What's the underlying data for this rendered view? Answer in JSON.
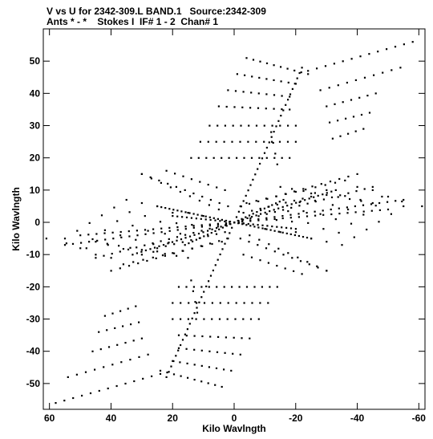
{
  "header": {
    "title_line1": "V vs U for 2342-309.L BAND.1   Source:2342-309",
    "title_line2": "Ants * - *    Stokes I  IF# 1 - 2  Chan# 1"
  },
  "chart_data": {
    "type": "scatter",
    "title": "V vs U for 2342-309.L BAND.1   Source:2342-309",
    "subtitle": "Ants * - *    Stokes I  IF# 1 - 2  Chan# 1",
    "xlabel": "Kilo Wavlngth",
    "ylabel": "Kilo Wavlngth",
    "xlim": [
      62,
      -62
    ],
    "ylim": [
      -58,
      60
    ],
    "x_inverted": true,
    "x_ticks": [
      60,
      40,
      20,
      0,
      -20,
      -40,
      -60
    ],
    "x_tick_labels": [
      "60",
      "40",
      "20",
      "0",
      "-20",
      "-40",
      "-60"
    ],
    "y_ticks": [
      -50,
      -40,
      -30,
      -20,
      -10,
      0,
      10,
      20,
      30,
      40,
      50
    ],
    "y_tick_labels": [
      "-50",
      "-40",
      "-30",
      "-20",
      "-10",
      "0",
      "10",
      "20",
      "30",
      "40",
      "50"
    ],
    "grid": false,
    "marker_color": "#000000",
    "series": [
      {
        "tracks": [
          {
            "u0": -4,
            "v0": 51,
            "u1": -24,
            "v1": 46,
            "n": 10
          },
          {
            "u0": -1,
            "v0": 46,
            "u1": -20,
            "v1": 43,
            "n": 9
          },
          {
            "u0": 2,
            "v0": 41,
            "u1": -18,
            "v1": 39,
            "n": 9
          },
          {
            "u0": 5,
            "v0": 36,
            "u1": -18,
            "v1": 35,
            "n": 10
          },
          {
            "u0": 8,
            "v0": 30,
            "u1": -20,
            "v1": 30,
            "n": 12
          },
          {
            "u0": 11,
            "v0": 25,
            "u1": -20,
            "v1": 25,
            "n": 13
          },
          {
            "u0": 14,
            "v0": 20,
            "u1": -18,
            "v1": 20,
            "n": 14
          },
          {
            "u0": -24,
            "v0": 47,
            "u1": -58,
            "v1": 56,
            "n": 13
          },
          {
            "u0": -28,
            "v0": 41,
            "u1": -54,
            "v1": 48,
            "n": 10
          },
          {
            "u0": -30,
            "v0": 36,
            "u1": -46,
            "v1": 40,
            "n": 7
          },
          {
            "u0": -31,
            "v0": 31,
            "u1": -44,
            "v1": 34,
            "n": 6
          },
          {
            "u0": -32,
            "v0": 26,
            "u1": -42,
            "v1": 29,
            "n": 5
          },
          {
            "u0": 0,
            "v0": 0,
            "u1": -22,
            "v1": 48,
            "n": 30
          },
          {
            "u0": 0,
            "v0": 0,
            "u1": 22,
            "v1": -48,
            "n": 30
          },
          {
            "u0": 4,
            "v0": -51,
            "u1": 24,
            "v1": -46,
            "n": 10
          },
          {
            "u0": 1,
            "v0": -46,
            "u1": 20,
            "v1": -43,
            "n": 9
          },
          {
            "u0": -2,
            "v0": -41,
            "u1": 18,
            "v1": -39,
            "n": 9
          },
          {
            "u0": -5,
            "v0": -36,
            "u1": 18,
            "v1": -35,
            "n": 10
          },
          {
            "u0": -8,
            "v0": -30,
            "u1": 20,
            "v1": -30,
            "n": 12
          },
          {
            "u0": -11,
            "v0": -25,
            "u1": 20,
            "v1": -25,
            "n": 13
          },
          {
            "u0": -14,
            "v0": -20,
            "u1": 18,
            "v1": -20,
            "n": 14
          },
          {
            "u0": 24,
            "v0": -47,
            "u1": 58,
            "v1": -56,
            "n": 13
          },
          {
            "u0": 28,
            "v0": -41,
            "u1": 54,
            "v1": -48,
            "n": 10
          },
          {
            "u0": 30,
            "v0": -36,
            "u1": 46,
            "v1": -40,
            "n": 7
          },
          {
            "u0": 31,
            "v0": -31,
            "u1": 44,
            "v1": -34,
            "n": 6
          },
          {
            "u0": 32,
            "v0": -26,
            "u1": 42,
            "v1": -29,
            "n": 5
          },
          {
            "u0": 0,
            "v0": 0,
            "u1": -33,
            "v1": 10,
            "n": 24
          },
          {
            "u0": 0,
            "v0": 0,
            "u1": 33,
            "v1": -10,
            "n": 24
          },
          {
            "u0": 0,
            "v0": 0,
            "u1": -25,
            "v1": -5,
            "n": 20
          },
          {
            "u0": 0,
            "v0": 0,
            "u1": 25,
            "v1": 5,
            "n": 20
          },
          {
            "u0": 0,
            "v0": 0,
            "u1": -16,
            "v1": 7,
            "n": 14
          },
          {
            "u0": 0,
            "v0": 0,
            "u1": 16,
            "v1": -7,
            "n": 14
          },
          {
            "u0": 0,
            "v0": 0,
            "u1": -20,
            "v1": -2,
            "n": 14
          },
          {
            "u0": 0,
            "v0": 0,
            "u1": 20,
            "v1": 2,
            "n": 14
          },
          {
            "u0": -2,
            "v0": 5,
            "u1": -40,
            "v1": 15,
            "n": 14
          },
          {
            "u0": -4,
            "v0": 6,
            "u1": -36,
            "v1": 13,
            "n": 11
          },
          {
            "u0": 2,
            "v0": -5,
            "u1": 40,
            "v1": -15,
            "n": 14
          },
          {
            "u0": 4,
            "v0": -6,
            "u1": 36,
            "v1": -13,
            "n": 11
          },
          {
            "u0": 2,
            "v0": 5,
            "u1": 30,
            "v1": 15,
            "n": 11
          },
          {
            "u0": -2,
            "v0": -5,
            "u1": -30,
            "v1": -15,
            "n": 11
          },
          {
            "u0": 3,
            "v0": 10,
            "u1": 22,
            "v1": 16,
            "n": 8
          },
          {
            "u0": -3,
            "v0": -10,
            "u1": -22,
            "v1": -16,
            "n": 8
          },
          {
            "u0": 3,
            "v0": -3,
            "u1": 25,
            "v1": -8,
            "n": 9
          },
          {
            "u0": -3,
            "v0": 3,
            "u1": -25,
            "v1": 8,
            "n": 9
          },
          {
            "u0": 0,
            "v0": 0,
            "u1": 55,
            "v1": -7,
            "n": 22
          },
          {
            "u0": 0,
            "v0": 0,
            "u1": -55,
            "v1": 7,
            "n": 22
          },
          {
            "u0": 0,
            "v0": 0,
            "u1": 50,
            "v1": -4,
            "n": 20
          },
          {
            "u0": 0,
            "v0": 0,
            "u1": -50,
            "v1": 4,
            "n": 20
          },
          {
            "u0": 0,
            "v0": 0,
            "u1": 45,
            "v1": -11,
            "n": 18
          },
          {
            "u0": 0,
            "v0": 0,
            "u1": -45,
            "v1": 11,
            "n": 18
          },
          {
            "u0": 20,
            "v0": 3,
            "u1": 40,
            "v1": -11,
            "n": 6
          },
          {
            "u0": -20,
            "v0": -3,
            "u1": -40,
            "v1": 11,
            "n": 6
          },
          {
            "u0": 25,
            "v0": 5,
            "u1": 45,
            "v1": -10,
            "n": 6
          },
          {
            "u0": -25,
            "v0": -5,
            "u1": -45,
            "v1": 10,
            "n": 6
          },
          {
            "u0": 30,
            "v0": 6,
            "u1": 50,
            "v1": -8,
            "n": 6
          },
          {
            "u0": -30,
            "v0": -6,
            "u1": -50,
            "v1": 8,
            "n": 6
          },
          {
            "u0": 35,
            "v0": 7,
            "u1": 55,
            "v1": -5,
            "n": 6
          },
          {
            "u0": -35,
            "v0": -7,
            "u1": -55,
            "v1": 5,
            "n": 6
          },
          {
            "u0": 15,
            "v0": 3,
            "u1": 30,
            "v1": -10,
            "n": 5
          },
          {
            "u0": -15,
            "v0": -3,
            "u1": -30,
            "v1": 10,
            "n": 5
          },
          {
            "u0": 10,
            "v0": 2,
            "u1": 25,
            "v1": -9,
            "n": 5
          },
          {
            "u0": -10,
            "v0": -2,
            "u1": -25,
            "v1": 9,
            "n": 5
          },
          {
            "u0": 5,
            "v0": 4,
            "u1": 30,
            "v1": 15,
            "n": 9
          },
          {
            "u0": -5,
            "v0": -4,
            "u1": -30,
            "v1": -15,
            "n": 9
          },
          {
            "u0": -15,
            "v0": 11,
            "u1": -45,
            "v1": 6,
            "n": 9
          },
          {
            "u0": 15,
            "v0": -11,
            "u1": 45,
            "v1": -6,
            "n": 9
          },
          {
            "u0": 48,
            "v0": -8,
            "u1": 61,
            "v1": -5,
            "n": 3
          },
          {
            "u0": -48,
            "v0": 8,
            "u1": -61,
            "v1": 5,
            "n": 3
          },
          {
            "u0": 14,
            "v0": -18,
            "u1": 12,
            "v1": -28,
            "n": 4
          },
          {
            "u0": -14,
            "v0": 18,
            "u1": -12,
            "v1": 28,
            "n": 4
          }
        ]
      }
    ]
  }
}
